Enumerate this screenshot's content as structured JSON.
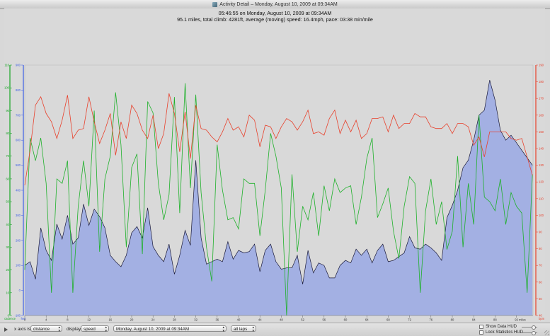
{
  "window": {
    "title": "Activity Detail – Monday, August 10, 2009 at 09:34AM"
  },
  "summary": {
    "line1": "05:46:55 on Monday, August 10, 2009 at 09:34AM",
    "line2": "95.1 miles, total climb: 4281ft, average (moving) speed: 16.4mph, pace: 03:38 min/mile"
  },
  "controls": {
    "x_axis_label": "x axis is:",
    "x_axis_value": "distance",
    "display_label": "display:",
    "display_value": "speed",
    "activity_value": "Monday, August 10, 2009 at 09:34AM",
    "laps_value": "all laps",
    "show_data_hud": "Show Data HUD",
    "lock_statistics_hud": "Lock Statistics HUD",
    "show_data_hud_checked": false,
    "lock_statistics_hud_checked": false
  },
  "colors": {
    "plot_bg": "#d9d9d9",
    "altitude_fill": "#a3b0e3",
    "altitude_line": "#1a1a3a",
    "heart_rate": "#e8412c",
    "cadence": "#1fb12b",
    "left_axis_green": "#17a524",
    "left_axis_blue": "#3d5ee6",
    "right_axis_red": "#e8412c"
  },
  "chart_data": {
    "type": "area",
    "x": {
      "label": "miles",
      "range": [
        0,
        95.1
      ],
      "ticks": [
        "0",
        "4",
        "8",
        "12",
        "16",
        "20",
        "24",
        "28",
        "32",
        "36",
        "40",
        "44",
        "48",
        "52",
        "56",
        "60",
        "64",
        "68",
        "72",
        "76",
        "80",
        "84",
        "88",
        "92"
      ]
    },
    "left_axis_green": {
      "label": "cadence",
      "range": [
        0,
        110
      ],
      "ticks": [
        "0",
        "10",
        "20",
        "30",
        "40",
        "50",
        "60",
        "70",
        "80",
        "90",
        "100",
        "110"
      ]
    },
    "left_axis_blue": {
      "label": "feet",
      "range": [
        -100,
        900
      ],
      "ticks": [
        "-100",
        "0",
        "100",
        "200",
        "300",
        "400",
        "500",
        "600",
        "700",
        "800",
        "900"
      ]
    },
    "right_axis_red": {
      "label": "bpm",
      "range": [
        40,
        190
      ],
      "ticks": [
        "40",
        "50",
        "60",
        "70",
        "80",
        "90",
        "100",
        "110",
        "120",
        "130",
        "140",
        "150",
        "160",
        "170",
        "180",
        "190"
      ]
    },
    "series": [
      {
        "name": "altitude",
        "kind": "area",
        "x": [
          0,
          1,
          2,
          3,
          4,
          5,
          6,
          7,
          8,
          9,
          10,
          11,
          12,
          13,
          14,
          15,
          16,
          17,
          18,
          19,
          20,
          21,
          22,
          23,
          24,
          25,
          26,
          27,
          28,
          29,
          30,
          31,
          32,
          33,
          34,
          35,
          36,
          37,
          38,
          39,
          40,
          41,
          42,
          43,
          44,
          45,
          46,
          47,
          48,
          49,
          50,
          51,
          52,
          53,
          54,
          55,
          56,
          57,
          58,
          59,
          60,
          61,
          62,
          63,
          64,
          65,
          66,
          67,
          68,
          69,
          70,
          71,
          72,
          73,
          74,
          75,
          76,
          77,
          78,
          79,
          80,
          81,
          82,
          83,
          84,
          85,
          86,
          87,
          88,
          89,
          90,
          91,
          92,
          93,
          94,
          95
        ],
        "y": [
          100,
          115,
          45,
          250,
          160,
          120,
          265,
          205,
          300,
          185,
          210,
          345,
          260,
          325,
          295,
          250,
          140,
          115,
          95,
          140,
          230,
          255,
          210,
          330,
          175,
          140,
          115,
          185,
          65,
          140,
          240,
          180,
          520,
          210,
          105,
          115,
          125,
          115,
          195,
          125,
          160,
          150,
          155,
          185,
          75,
          160,
          185,
          115,
          85,
          90,
          90,
          140,
          25,
          160,
          70,
          110,
          100,
          50,
          50,
          100,
          120,
          110,
          165,
          140,
          165,
          110,
          160,
          185,
          115,
          120,
          135,
          150,
          215,
          170,
          165,
          185,
          170,
          150,
          120,
          290,
          340,
          400,
          490,
          520,
          600,
          700,
          720,
          840,
          760,
          640,
          600,
          620,
          590,
          560,
          530,
          500
        ]
      },
      {
        "name": "heart rate",
        "kind": "line",
        "x": [
          0,
          1,
          2,
          3,
          4,
          5,
          6,
          7,
          8,
          9,
          10,
          11,
          12,
          13,
          14,
          15,
          16,
          17,
          18,
          19,
          20,
          21,
          22,
          23,
          24,
          25,
          26,
          27,
          28,
          29,
          30,
          31,
          32,
          33,
          34,
          35,
          36,
          37,
          38,
          39,
          40,
          41,
          42,
          43,
          44,
          45,
          46,
          47,
          48,
          49,
          50,
          51,
          52,
          53,
          54,
          55,
          56,
          57,
          58,
          59,
          60,
          61,
          62,
          63,
          64,
          65,
          66,
          67,
          68,
          69,
          70,
          71,
          72,
          73,
          74,
          75,
          76,
          77,
          78,
          79,
          80,
          81,
          82,
          83,
          84,
          85,
          86,
          87,
          88,
          89,
          90,
          91,
          92,
          93,
          94,
          95
        ],
        "y": [
          118,
          139,
          166,
          171,
          161,
          156,
          146,
          157,
          172,
          146,
          151,
          152,
          171,
          156,
          143,
          151,
          161,
          136,
          156,
          146,
          166,
          161,
          151,
          146,
          160,
          140,
          149,
          173,
          161,
          138,
          162,
          134,
          166,
          152,
          151,
          147,
          144,
          150,
          158,
          151,
          153,
          147,
          160,
          157,
          141,
          154,
          153,
          146,
          153,
          158,
          156,
          151,
          156,
          163,
          149,
          150,
          148,
          158,
          163,
          149,
          157,
          150,
          157,
          146,
          149,
          158,
          158,
          159,
          150,
          160,
          152,
          155,
          155,
          161,
          159,
          159,
          153,
          152,
          152,
          155,
          149,
          155,
          155,
          153,
          142,
          147,
          135,
          150,
          150,
          150,
          150,
          146,
          145,
          146,
          135,
          124
        ]
      },
      {
        "name": "cadence",
        "kind": "line",
        "x": [
          0,
          1,
          2,
          3,
          4,
          5,
          6,
          7,
          8,
          9,
          10,
          11,
          12,
          13,
          14,
          15,
          16,
          17,
          18,
          19,
          20,
          21,
          22,
          23,
          24,
          25,
          26,
          27,
          28,
          29,
          30,
          31,
          32,
          33,
          34,
          35,
          36,
          37,
          38,
          39,
          40,
          41,
          42,
          43,
          44,
          45,
          46,
          47,
          48,
          49,
          50,
          51,
          52,
          53,
          54,
          55,
          56,
          57,
          58,
          59,
          60,
          61,
          62,
          63,
          64,
          65,
          66,
          67,
          68,
          69,
          70,
          71,
          72,
          73,
          74,
          75,
          76,
          77,
          78,
          79,
          80,
          81,
          82,
          83,
          84,
          85,
          86,
          87,
          88,
          89,
          90,
          91,
          92,
          93,
          94,
          95
        ],
        "y": [
          20,
          78,
          68,
          78,
          58,
          10,
          60,
          58,
          68,
          10,
          48,
          68,
          48,
          90,
          28,
          60,
          70,
          98,
          75,
          30,
          65,
          71,
          27,
          94,
          89,
          58,
          42,
          53,
          96,
          45,
          102,
          56,
          97,
          54,
          30,
          15,
          75,
          55,
          42,
          43,
          38,
          60,
          58,
          58,
          35,
          55,
          80,
          70,
          56,
          0,
          62,
          28,
          48,
          42,
          54,
          35,
          57,
          46,
          60,
          54,
          56,
          57,
          40,
          52,
          69,
          78,
          43,
          49,
          56,
          37,
          25,
          48,
          61,
          58,
          10,
          46,
          60,
          40,
          50,
          29,
          37,
          70,
          30,
          58,
          40,
          88,
          52,
          50,
          46,
          60,
          40,
          54,
          48,
          45,
          10,
          62
        ]
      }
    ],
    "legend": "none",
    "grid": false
  }
}
